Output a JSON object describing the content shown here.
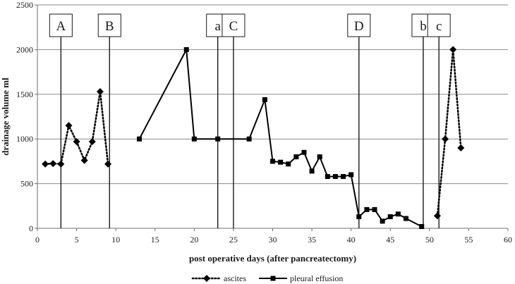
{
  "chart_data": {
    "type": "line",
    "xlabel": "post operative days (after pancreatectomy)",
    "ylabel": "drainage volume ml",
    "xlim": [
      0,
      60
    ],
    "ylim": [
      0,
      2500
    ],
    "xticks": [
      0,
      5,
      10,
      15,
      20,
      25,
      30,
      35,
      40,
      45,
      50,
      55,
      60
    ],
    "yticks": [
      0,
      500,
      1000,
      1500,
      2000,
      2500
    ],
    "grid": "horizontal",
    "legend_position": "bottom",
    "series": [
      {
        "name": "ascites",
        "style": "dotted",
        "marker": "diamond",
        "color": "#000000",
        "segments": [
          [
            [
              1,
              720
            ],
            [
              2,
              725
            ],
            [
              3,
              720
            ],
            [
              4,
              1150
            ],
            [
              5,
              970
            ],
            [
              6,
              760
            ],
            [
              7,
              970
            ],
            [
              8,
              1530
            ],
            [
              9,
              720
            ]
          ],
          [
            [
              51,
              140
            ],
            [
              52,
              1000
            ],
            [
              53,
              2000
            ],
            [
              54,
              900
            ]
          ]
        ]
      },
      {
        "name": "pleural effusion",
        "style": "solid",
        "marker": "square",
        "color": "#000000",
        "segments": [
          [
            [
              13,
              1000
            ],
            [
              19,
              2000
            ],
            [
              20,
              1000
            ],
            [
              23,
              1000
            ],
            [
              27,
              1000
            ],
            [
              29,
              1440
            ],
            [
              30,
              750
            ],
            [
              31,
              740
            ],
            [
              32,
              720
            ],
            [
              33,
              800
            ],
            [
              34,
              850
            ],
            [
              35,
              640
            ],
            [
              36,
              800
            ],
            [
              37,
              580
            ],
            [
              38,
              580
            ],
            [
              39,
              580
            ],
            [
              40,
              600
            ],
            [
              41,
              130
            ],
            [
              42,
              210
            ],
            [
              43,
              210
            ],
            [
              44,
              80
            ],
            [
              45,
              130
            ],
            [
              46,
              160
            ],
            [
              47,
              110
            ],
            [
              49,
              20
            ]
          ]
        ]
      }
    ],
    "vertical_markers": [
      {
        "label": "A",
        "x": 3
      },
      {
        "label": "B",
        "x": 9.2
      },
      {
        "label": "a",
        "x": 23
      },
      {
        "label": "C",
        "x": 25
      },
      {
        "label": "D",
        "x": 41
      },
      {
        "label": "b",
        "x": 49.2
      },
      {
        "label": "c",
        "x": 51.2
      }
    ]
  }
}
